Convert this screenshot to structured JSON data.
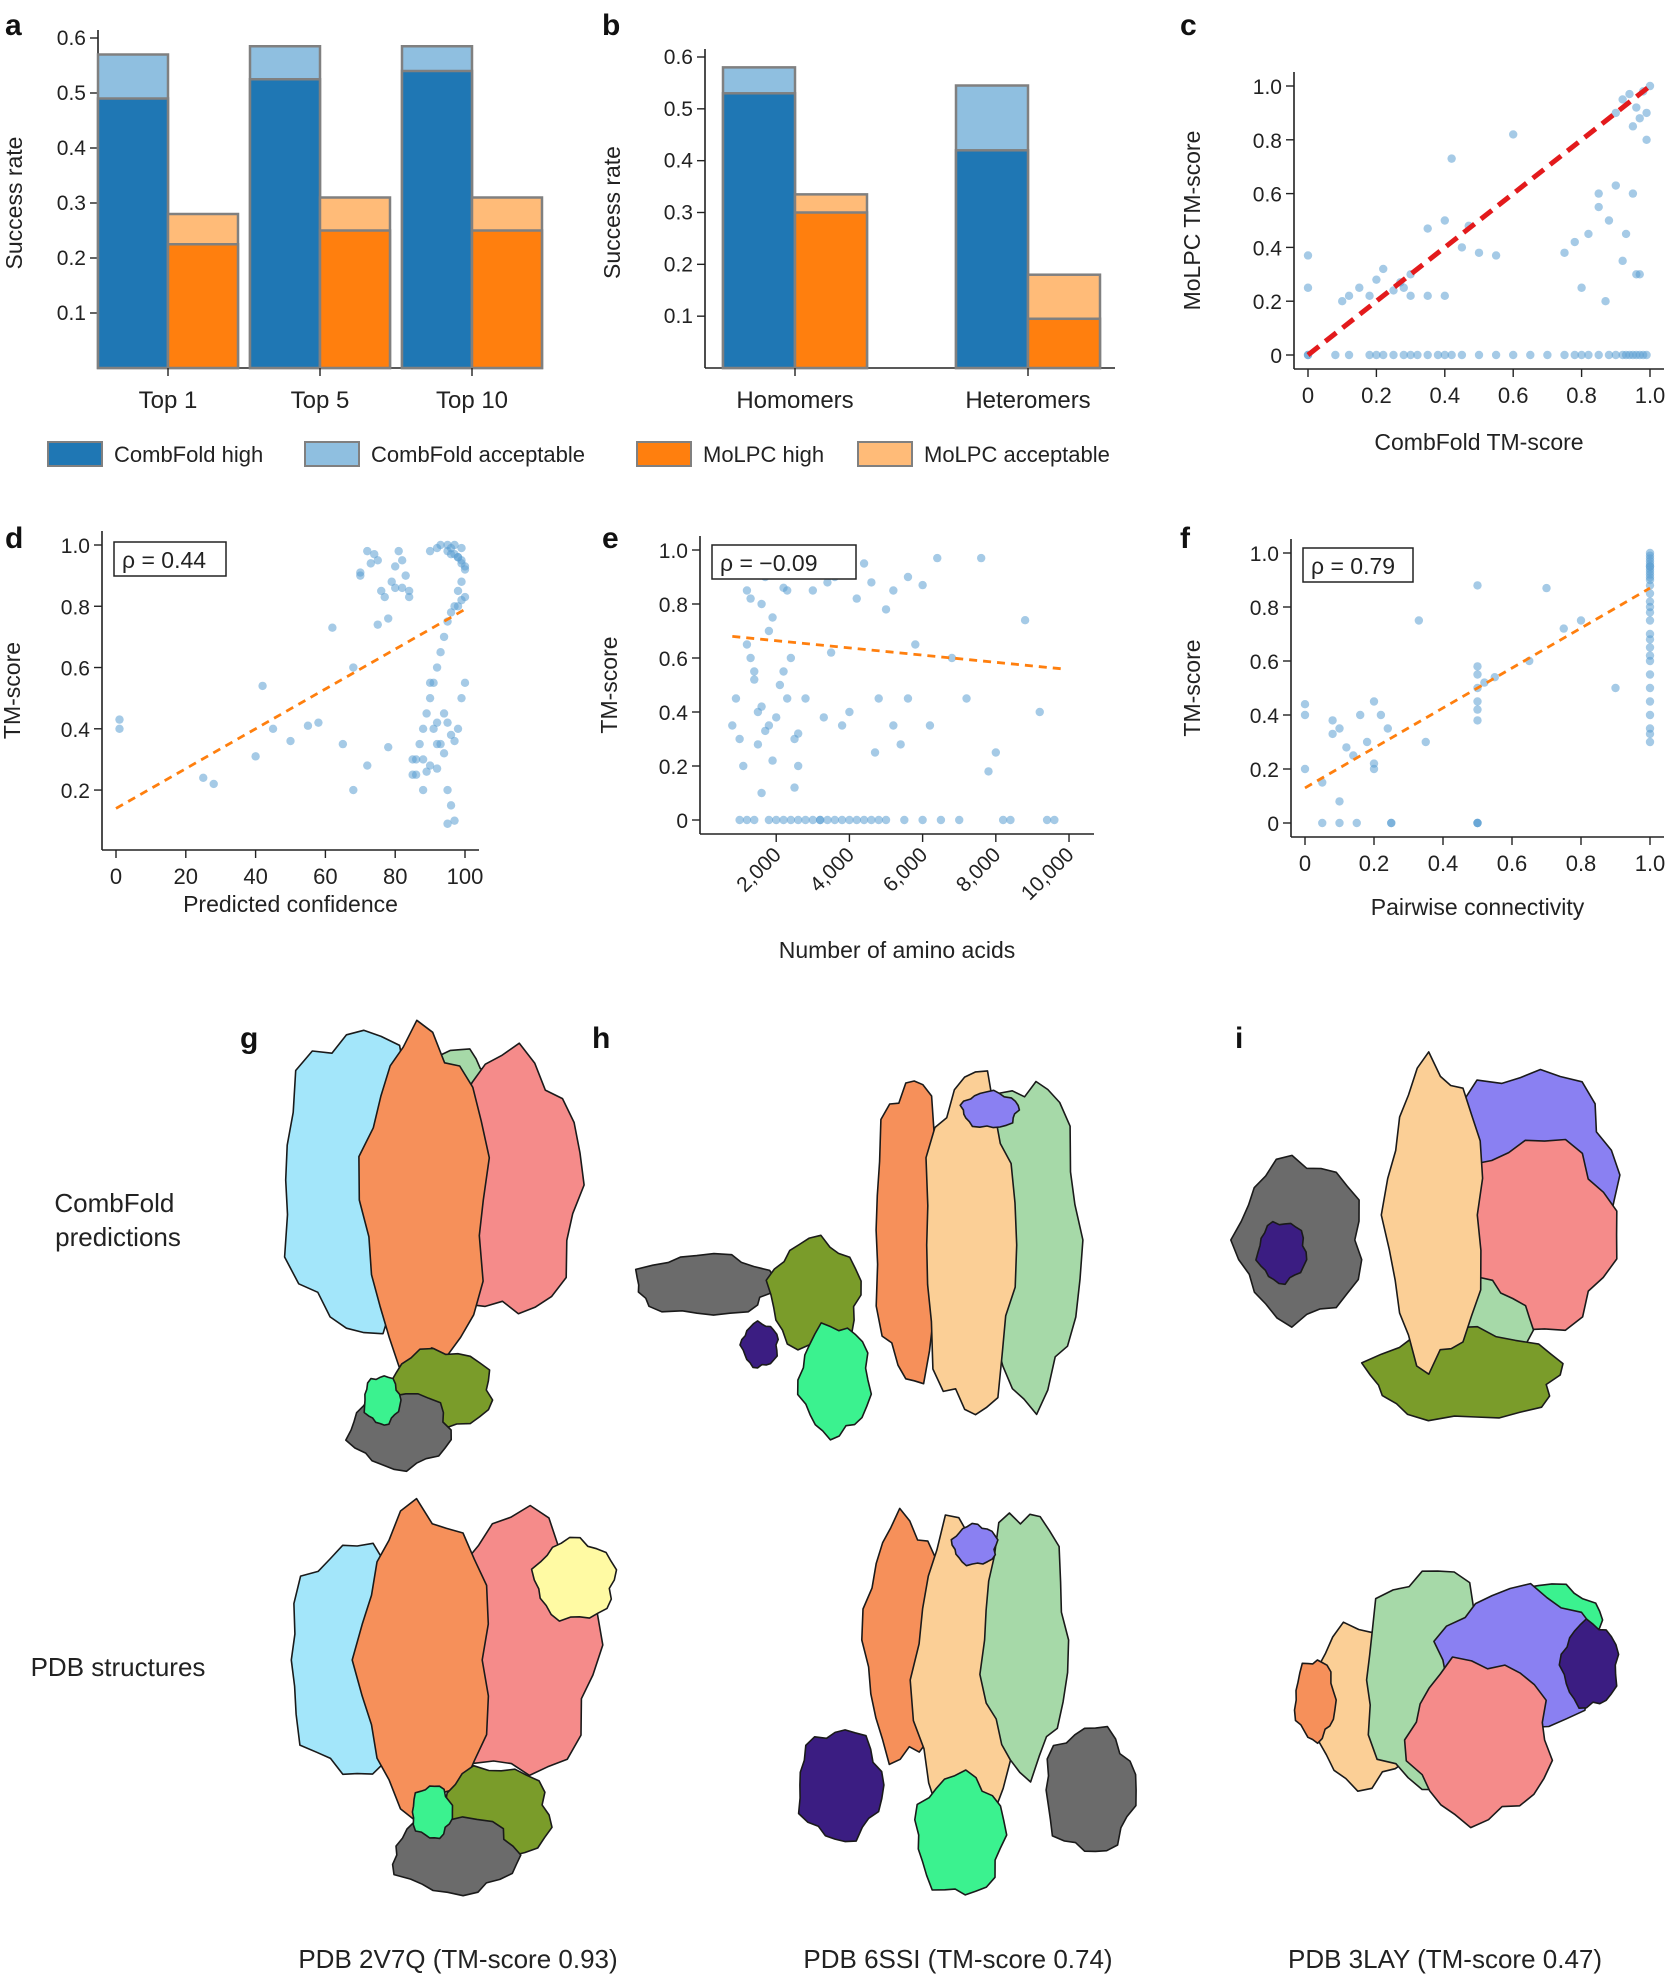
{
  "colors": {
    "cf_high": "#1f77b4",
    "cf_acc": "#8fbfe0",
    "mo_high": "#ff7f0e",
    "mo_acc": "#ffbb78",
    "point": "#5b9fd2",
    "fit_orange": "#ff7f0e",
    "fit_red": "#e31a1c",
    "bar_edge": "#808080"
  },
  "panel_letters": [
    "a",
    "b",
    "c",
    "d",
    "e",
    "f",
    "g",
    "h",
    "i"
  ],
  "legend": [
    "CombFold high",
    "CombFold acceptable",
    "MoLPC high",
    "MoLPC acceptable"
  ],
  "structures": {
    "row_labels": [
      "CombFold\npredictions",
      "PDB structures"
    ],
    "captions": [
      "PDB 2V7Q (TM-score 0.93)",
      "PDB 6SSI (TM-score 0.74)",
      "PDB 3LAY (TM-score 0.47)"
    ],
    "palette": [
      "#a3e6fa",
      "#f6905a",
      "#f58b8a",
      "#a6d9a8",
      "#fbcf96",
      "#fffaa3",
      "#6b6b6b",
      "#7a9c2a",
      "#3bf28f",
      "#3b1d82",
      "#8a80f2",
      "#9a9a9a"
    ]
  },
  "chart_data": [
    {
      "id": "a",
      "type": "bar",
      "title": "",
      "xlabel": "",
      "ylabel": "Success rate",
      "categories": [
        "Top 1",
        "Top 5",
        "Top 10"
      ],
      "ylim": [
        0,
        0.6
      ],
      "yticks": [
        "0.1",
        "0.2",
        "0.3",
        "0.4",
        "0.5",
        "0.6"
      ],
      "series": [
        {
          "name": "CombFold high",
          "values": [
            0.49,
            0.525,
            0.54
          ]
        },
        {
          "name": "CombFold acceptable",
          "values": [
            0.57,
            0.585,
            0.585
          ]
        },
        {
          "name": "MoLPC high",
          "values": [
            0.225,
            0.25,
            0.25
          ]
        },
        {
          "name": "MoLPC acceptable",
          "values": [
            0.28,
            0.31,
            0.31
          ]
        }
      ]
    },
    {
      "id": "b",
      "type": "bar",
      "title": "",
      "xlabel": "",
      "ylabel": "Success rate",
      "categories": [
        "Homomers",
        "Heteromers"
      ],
      "ylim": [
        0,
        0.6
      ],
      "yticks": [
        "0.1",
        "0.2",
        "0.3",
        "0.4",
        "0.5",
        "0.6"
      ],
      "series": [
        {
          "name": "CombFold high",
          "values": [
            0.53,
            0.42
          ]
        },
        {
          "name": "CombFold acceptable",
          "values": [
            0.58,
            0.545
          ]
        },
        {
          "name": "MoLPC high",
          "values": [
            0.3,
            0.095
          ]
        },
        {
          "name": "MoLPC acceptable",
          "values": [
            0.335,
            0.18
          ]
        }
      ]
    },
    {
      "id": "c",
      "type": "scatter",
      "xlabel": "CombFold TM-score",
      "ylabel": "MoLPC TM-score",
      "xlim": [
        0,
        1
      ],
      "ylim": [
        0,
        1
      ],
      "xticks": [
        "0",
        "0.2",
        "0.4",
        "0.6",
        "0.8",
        "1.0"
      ],
      "yticks": [
        "0",
        "0.2",
        "0.4",
        "0.6",
        "0.8",
        "1.0"
      ],
      "annotation": "",
      "fit": {
        "x": [
          0,
          1
        ],
        "y": [
          0,
          1
        ]
      },
      "x": [
        0.0,
        0.0,
        0.0,
        0.0,
        0.08,
        0.12,
        0.18,
        0.2,
        0.22,
        0.25,
        0.28,
        0.3,
        0.32,
        0.35,
        0.38,
        0.4,
        0.42,
        0.45,
        0.5,
        0.55,
        0.6,
        0.65,
        0.7,
        0.75,
        0.78,
        0.8,
        0.82,
        0.85,
        0.88,
        0.9,
        0.92,
        0.93,
        0.94,
        0.95,
        0.96,
        0.97,
        0.98,
        0.99,
        0.9,
        0.92,
        0.94,
        0.96,
        0.98,
        0.85,
        0.88,
        0.95,
        0.97,
        0.6,
        0.55,
        0.42,
        0.4,
        0.35,
        0.3,
        0.27,
        0.22,
        0.2,
        0.18,
        0.15,
        0.12,
        0.1,
        0.45,
        0.5,
        0.75,
        0.8,
        0.85,
        0.9,
        0.95,
        1.0,
        0.93,
        0.96,
        0.99,
        0.3,
        0.28,
        0.25,
        0.35,
        0.4,
        0.47,
        0.78,
        0.82,
        0.87,
        0.92,
        0.97,
        0.99
      ],
      "y": [
        0.0,
        0.37,
        0.25,
        0.0,
        0.0,
        0.0,
        0.0,
        0.0,
        0.0,
        0.0,
        0.0,
        0.0,
        0.0,
        0.0,
        0.0,
        0.0,
        0.0,
        0.0,
        0.0,
        0.0,
        0.0,
        0.0,
        0.0,
        0.0,
        0.0,
        0.0,
        0.0,
        0.0,
        0.0,
        0.0,
        0.0,
        0.0,
        0.0,
        0.0,
        0.0,
        0.0,
        0.0,
        0.0,
        0.9,
        0.95,
        0.97,
        0.92,
        0.98,
        0.55,
        0.5,
        0.6,
        0.88,
        0.82,
        0.37,
        0.73,
        0.5,
        0.47,
        0.3,
        0.27,
        0.32,
        0.28,
        0.22,
        0.25,
        0.22,
        0.2,
        0.4,
        0.38,
        0.38,
        0.25,
        0.6,
        0.63,
        0.85,
        1.0,
        0.45,
        0.3,
        0.8,
        0.22,
        0.25,
        0.24,
        0.22,
        0.22,
        0.48,
        0.42,
        0.45,
        0.2,
        0.35,
        0.3,
        0.9
      ]
    },
    {
      "id": "d",
      "type": "scatter",
      "xlabel": "Predicted confidence",
      "ylabel": "TM-score",
      "xlim": [
        0,
        100
      ],
      "ylim": [
        0.05,
        1.0
      ],
      "xticks": [
        "0",
        "20",
        "40",
        "60",
        "80",
        "100"
      ],
      "yticks": [
        "0.2",
        "0.4",
        "0.6",
        "0.8",
        "1.0"
      ],
      "annotation": "ρ = 0.44",
      "fit": {
        "x": [
          0,
          100
        ],
        "y": [
          0.14,
          0.79
        ]
      },
      "x": [
        1,
        1,
        25,
        28,
        40,
        42,
        45,
        50,
        55,
        58,
        62,
        65,
        68,
        70,
        72,
        75,
        78,
        80,
        82,
        84,
        85,
        86,
        88,
        90,
        91,
        92,
        93,
        94,
        95,
        96,
        97,
        98,
        99,
        99,
        100,
        99,
        98,
        97,
        96,
        95,
        94,
        93,
        92,
        91,
        90,
        89,
        88,
        87,
        86,
        85,
        84,
        83,
        82,
        81,
        80,
        79,
        78,
        77,
        76,
        75,
        74,
        73,
        72,
        70,
        68,
        88,
        90,
        92,
        94,
        95,
        96,
        97,
        98,
        99,
        100,
        90,
        92,
        93,
        95,
        96,
        97,
        98,
        99,
        100,
        95,
        96,
        97,
        98,
        99,
        100,
        95,
        92,
        89
      ],
      "y": [
        0.43,
        0.4,
        0.24,
        0.22,
        0.31,
        0.54,
        0.4,
        0.36,
        0.41,
        0.42,
        0.73,
        0.35,
        0.2,
        0.91,
        0.28,
        0.74,
        0.34,
        0.86,
        0.86,
        0.83,
        0.3,
        0.25,
        0.2,
        0.55,
        0.4,
        0.42,
        0.35,
        0.45,
        0.98,
        0.97,
        1.0,
        0.96,
        0.95,
        0.99,
        0.92,
        0.88,
        0.85,
        0.8,
        0.78,
        0.75,
        0.7,
        0.65,
        0.6,
        0.55,
        0.5,
        0.45,
        0.4,
        0.35,
        0.3,
        0.25,
        0.85,
        0.9,
        0.95,
        0.98,
        0.93,
        0.88,
        0.76,
        0.83,
        0.85,
        0.95,
        0.97,
        0.94,
        0.98,
        0.9,
        0.6,
        0.3,
        0.28,
        0.35,
        0.32,
        0.2,
        0.15,
        0.1,
        0.4,
        0.5,
        0.55,
        0.98,
        0.99,
        1.0,
        1.0,
        0.99,
        0.97,
        0.96,
        0.94,
        0.93,
        0.42,
        0.38,
        0.36,
        0.8,
        0.82,
        0.83,
        0.09,
        0.27,
        0.26
      ]
    },
    {
      "id": "e",
      "type": "scatter",
      "xlabel": "Number of amino acids",
      "ylabel": "TM-score",
      "xlim": [
        300,
        10300
      ],
      "ylim": [
        0,
        1.0
      ],
      "xticks": [
        "2,000",
        "4,000",
        "6,000",
        "8,000",
        "10,000"
      ],
      "xtick_values": [
        2000,
        4000,
        6000,
        8000,
        10000
      ],
      "yticks": [
        "0",
        "0.2",
        "0.4",
        "0.6",
        "0.8",
        "1.0"
      ],
      "annotation": "ρ = −0.09",
      "fit": {
        "x": [
          800,
          9800
        ],
        "y": [
          0.68,
          0.56
        ]
      },
      "x": [
        800,
        900,
        1000,
        1100,
        1200,
        1300,
        1400,
        1500,
        1600,
        1700,
        1800,
        1900,
        2000,
        2100,
        2200,
        2300,
        2400,
        2500,
        2600,
        2800,
        3000,
        3200,
        3400,
        3600,
        3800,
        4000,
        4200,
        4400,
        4600,
        4800,
        5000,
        5200,
        5400,
        5600,
        5800,
        6000,
        6400,
        6800,
        7200,
        7600,
        8000,
        8400,
        8800,
        9200,
        9600,
        1000,
        1200,
        1400,
        1600,
        1800,
        2000,
        2200,
        2400,
        2600,
        2800,
        3000,
        3200,
        3400,
        3600,
        3800,
        4000,
        4200,
        4400,
        4600,
        4800,
        5000,
        5500,
        6000,
        6500,
        7000,
        8200,
        9400,
        1300,
        1500,
        1700,
        1900,
        2100,
        2300,
        2500,
        1200,
        1400,
        1600,
        3300,
        3500,
        4700,
        5200,
        5600,
        6200,
        7800,
        1800,
        2200,
        2600
      ],
      "y": [
        0.35,
        0.45,
        0.3,
        0.2,
        0.85,
        0.6,
        0.55,
        0.4,
        0.8,
        0.9,
        0.7,
        0.75,
        0.38,
        0.5,
        0.86,
        0.85,
        0.6,
        0.3,
        0.2,
        0.45,
        0.85,
        0.0,
        0.88,
        0.9,
        0.35,
        0.4,
        0.82,
        0.95,
        0.88,
        0.45,
        0.78,
        0.35,
        0.28,
        0.9,
        0.65,
        0.87,
        0.97,
        0.6,
        0.45,
        0.97,
        0.25,
        0.0,
        0.74,
        0.4,
        0.0,
        0.0,
        0.0,
        0.0,
        0.1,
        0.0,
        0.0,
        0.0,
        0.0,
        0.0,
        0.0,
        0.0,
        0.0,
        0.0,
        0.0,
        0.0,
        0.0,
        0.0,
        0.0,
        0.0,
        0.0,
        0.0,
        0.0,
        0.0,
        0.0,
        0.0,
        0.0,
        0.0,
        0.82,
        0.28,
        0.33,
        0.22,
        0.97,
        0.45,
        0.12,
        0.65,
        0.52,
        0.42,
        0.38,
        0.62,
        0.25,
        0.85,
        0.45,
        0.35,
        0.18,
        0.35,
        0.55,
        0.32
      ]
    },
    {
      "id": "f",
      "type": "scatter",
      "xlabel": "Pairwise connectivity",
      "ylabel": "TM-score",
      "xlim": [
        0,
        1
      ],
      "ylim": [
        0,
        1.0
      ],
      "xticks": [
        "0",
        "0.2",
        "0.4",
        "0.6",
        "0.8",
        "1.0"
      ],
      "yticks": [
        "0",
        "0.2",
        "0.4",
        "0.6",
        "0.8",
        "1.0"
      ],
      "annotation": "ρ = 0.79",
      "fit": {
        "x": [
          0,
          1
        ],
        "y": [
          0.13,
          0.87
        ]
      },
      "x": [
        0,
        0,
        0,
        0.08,
        0.08,
        0.1,
        0.12,
        0.14,
        0.16,
        0.18,
        0.2,
        0.2,
        0.22,
        0.24,
        0.25,
        0.25,
        0.33,
        0.35,
        0.5,
        0.5,
        0.5,
        0.5,
        0.5,
        0.5,
        0.5,
        0.5,
        0.5,
        0.5,
        0.52,
        0.55,
        0.65,
        0.7,
        0.75,
        0.8,
        0.9,
        1,
        1,
        1,
        1,
        1,
        1,
        1,
        1,
        1,
        1,
        1,
        1,
        1,
        1,
        1,
        1,
        1,
        1,
        1,
        1,
        1,
        1,
        1,
        1,
        1,
        1,
        1,
        1,
        1,
        1,
        0.1,
        0.15,
        0.1,
        0.05,
        0.05,
        0.2
      ],
      "y": [
        0.44,
        0.4,
        0.2,
        0.38,
        0.33,
        0.35,
        0.28,
        0.25,
        0.4,
        0.3,
        0.45,
        0.22,
        0.4,
        0.35,
        0.0,
        0.0,
        0.75,
        0.3,
        0.88,
        0.58,
        0.55,
        0.5,
        0.45,
        0.42,
        0.38,
        0.0,
        0.0,
        0.0,
        0.52,
        0.54,
        0.6,
        0.87,
        0.72,
        0.75,
        0.5,
        1.0,
        0.99,
        0.98,
        0.97,
        0.96,
        0.95,
        0.94,
        0.93,
        0.92,
        0.9,
        0.88,
        0.85,
        0.8,
        0.75,
        0.7,
        0.65,
        0.6,
        0.55,
        0.5,
        0.45,
        0.4,
        0.35,
        0.33,
        0.3,
        0.62,
        0.68,
        0.78,
        0.82,
        0.91,
        0.95,
        0.08,
        0.0,
        0.0,
        0.0,
        0.15,
        0.2
      ]
    }
  ]
}
